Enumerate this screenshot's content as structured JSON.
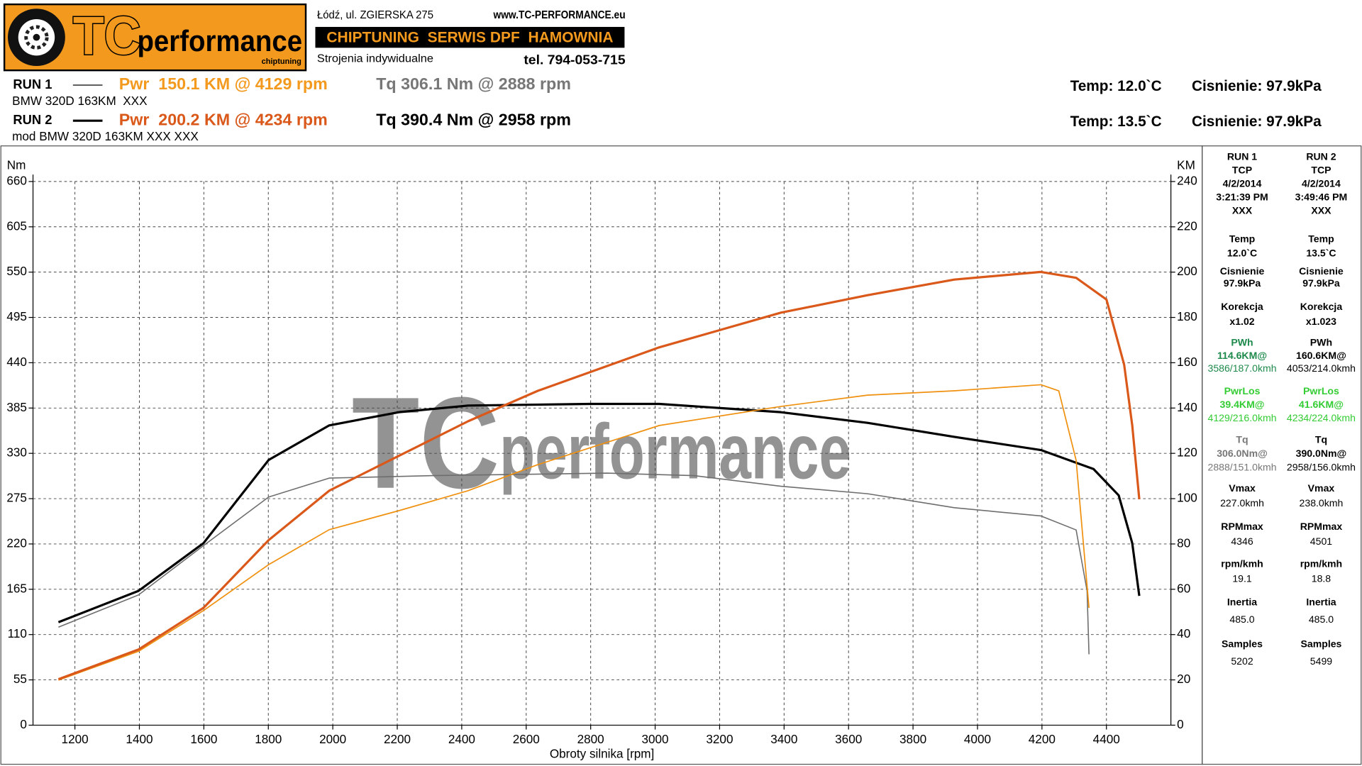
{
  "header": {
    "logo_tc": "TC",
    "logo_performance": "performance",
    "logo_sub": "chiptuning",
    "address": "Łódź, ul. ZGIERSKA 275",
    "website": "www.TC-PERFORMANCE.eu",
    "banner": "CHIPTUNING  SERWIS DPF  HAMOWNIA",
    "tagline": "Strojenia indywidualne",
    "phone": "tel. 794-053-715"
  },
  "runs": [
    {
      "label": "RUN 1",
      "pwr": "Pwr  150.1 KM @ 4129 rpm",
      "tq": "Tq 306.1 Nm @ 2888 rpm",
      "desc": "BMW 320D 163KM  XXX",
      "temp": "Temp: 12.0`C",
      "pressure": "Cisnienie: 97.9kPa"
    },
    {
      "label": "RUN 2",
      "pwr": "Pwr  200.2 KM @ 4234 rpm",
      "tq": "Tq 390.4 Nm @ 2958 rpm",
      "desc": "mod BMW 320D 163KM XXX XXX",
      "temp": "Temp: 13.5`C",
      "pressure": "Cisnienie: 97.9kPa"
    }
  ],
  "chart_data": {
    "type": "line",
    "x_label": "Obroty silnika [rpm]",
    "y_label": "Nm",
    "y2_label": "KM",
    "watermark_tc": "TC",
    "watermark_text": "performance",
    "xlim": [
      1070,
      4600
    ],
    "xticks": [
      1200,
      1400,
      1600,
      1800,
      2000,
      2200,
      2400,
      2600,
      2800,
      3000,
      3200,
      3400,
      3600,
      3800,
      4000,
      4200,
      4400
    ],
    "ylim": [
      0,
      660
    ],
    "yticks": [
      0,
      55,
      110,
      165,
      220,
      275,
      330,
      385,
      440,
      495,
      550,
      605,
      660
    ],
    "y2lim": [
      0,
      240
    ],
    "y2ticks": [
      0,
      20,
      40,
      60,
      80,
      100,
      120,
      140,
      160,
      180,
      200,
      220,
      240
    ],
    "grid": true,
    "series": [
      {
        "color": "#6e6e6e",
        "width": 1.3,
        "axis": "y",
        "x": [
          1149,
          1397,
          1599,
          1801,
          1989,
          2312,
          2851,
          3120,
          3390,
          3659,
          3928,
          4197,
          4306,
          4340,
          4346
        ],
        "values": [
          119,
          158,
          218,
          277,
          300,
          303,
          306,
          303,
          290,
          281,
          264,
          254,
          237,
          163,
          86
        ]
      },
      {
        "color": "#000000",
        "width": 2.6,
        "axis": "y",
        "x": [
          1149,
          1397,
          1599,
          1801,
          1989,
          2205,
          2420,
          2797,
          3013,
          3390,
          3659,
          3928,
          4197,
          4360,
          4438,
          4480,
          4502
        ],
        "values": [
          125,
          163,
          221,
          322,
          364,
          380,
          388,
          390,
          390,
          380,
          367,
          350,
          334,
          311,
          279,
          221,
          157
        ]
      },
      {
        "color": "#f0900f",
        "width": 1.4,
        "axis": "y2",
        "x": [
          1149,
          1397,
          1599,
          1801,
          1989,
          2205,
          2420,
          2636,
          3013,
          3390,
          3659,
          3928,
          4197,
          4252,
          4306,
          4346
        ],
        "values": [
          19.9,
          32.6,
          50.6,
          70.9,
          86.3,
          94.7,
          103.5,
          115,
          132.3,
          140.7,
          145.7,
          147.6,
          150.3,
          147.6,
          116.9,
          51.8
        ]
      },
      {
        "color": "#d9581a",
        "width": 2.6,
        "axis": "y2",
        "x": [
          1149,
          1397,
          1599,
          1801,
          1989,
          2205,
          2420,
          2636,
          3013,
          3390,
          3659,
          3928,
          4197,
          4306,
          4400,
          4455,
          4480,
          4502
        ],
        "values": [
          20.3,
          33.4,
          51.8,
          81.7,
          103.5,
          118.9,
          134.2,
          147.6,
          166.8,
          182.1,
          189.8,
          196.7,
          200.1,
          197.5,
          187.9,
          159.1,
          132.3,
          99.7
        ]
      }
    ]
  },
  "side_panel": {
    "columns": [
      [
        {
          "lines": [
            "RUN 1",
            "TCP",
            "4/2/2014",
            "3:21:39 PM",
            "XXX"
          ]
        },
        {
          "lines": [
            "Temp",
            "12.0`C"
          ]
        },
        {
          "lines": [
            "Cisnienie",
            "97.9kPa"
          ]
        },
        {
          "lines": [
            "Korekcja",
            "x1.02"
          ]
        },
        {
          "lines": [
            "PWh",
            "114.6KM@",
            "3586/187.0kmh"
          ],
          "color": "#1e8a4b"
        },
        {
          "lines": [
            "PwrLos",
            "39.4KM@",
            "4129/216.0kmh"
          ],
          "color": "#33cc33"
        },
        {
          "lines": [
            "Tq",
            "306.0Nm@",
            "2888/151.0kmh"
          ],
          "color": "#777777"
        },
        {
          "lines": [
            "Vmax",
            "227.0kmh"
          ]
        },
        {
          "lines": [
            "RPMmax",
            "4346"
          ]
        },
        {
          "lines": [
            "rpm/kmh",
            "19.1"
          ]
        },
        {
          "lines": [
            "Inertia",
            "485.0"
          ]
        },
        {
          "lines": [
            "Samples",
            "5202"
          ]
        }
      ],
      [
        {
          "lines": [
            "RUN 2",
            "TCP",
            "4/2/2014",
            "3:49:46 PM",
            "XXX"
          ]
        },
        {
          "lines": [
            "Temp",
            "13.5`C"
          ]
        },
        {
          "lines": [
            "Cisnienie",
            "97.9kPa"
          ]
        },
        {
          "lines": [
            "Korekcja",
            "x1.023"
          ]
        },
        {
          "lines": [
            "PWh",
            "160.6KM@",
            "4053/214.0kmh"
          ],
          "color": "#000000"
        },
        {
          "lines": [
            "PwrLos",
            "41.6KM@",
            "4234/224.0kmh"
          ],
          "color": "#33cc33"
        },
        {
          "lines": [
            "Tq",
            "390.0Nm@",
            "2958/156.0kmh"
          ],
          "color": "#000000"
        },
        {
          "lines": [
            "Vmax",
            "238.0kmh"
          ]
        },
        {
          "lines": [
            "RPMmax",
            "4501"
          ]
        },
        {
          "lines": [
            "rpm/kmh",
            "18.8"
          ]
        },
        {
          "lines": [
            "Inertia",
            "485.0"
          ]
        },
        {
          "lines": [
            "Samples",
            "5499"
          ]
        }
      ]
    ]
  }
}
